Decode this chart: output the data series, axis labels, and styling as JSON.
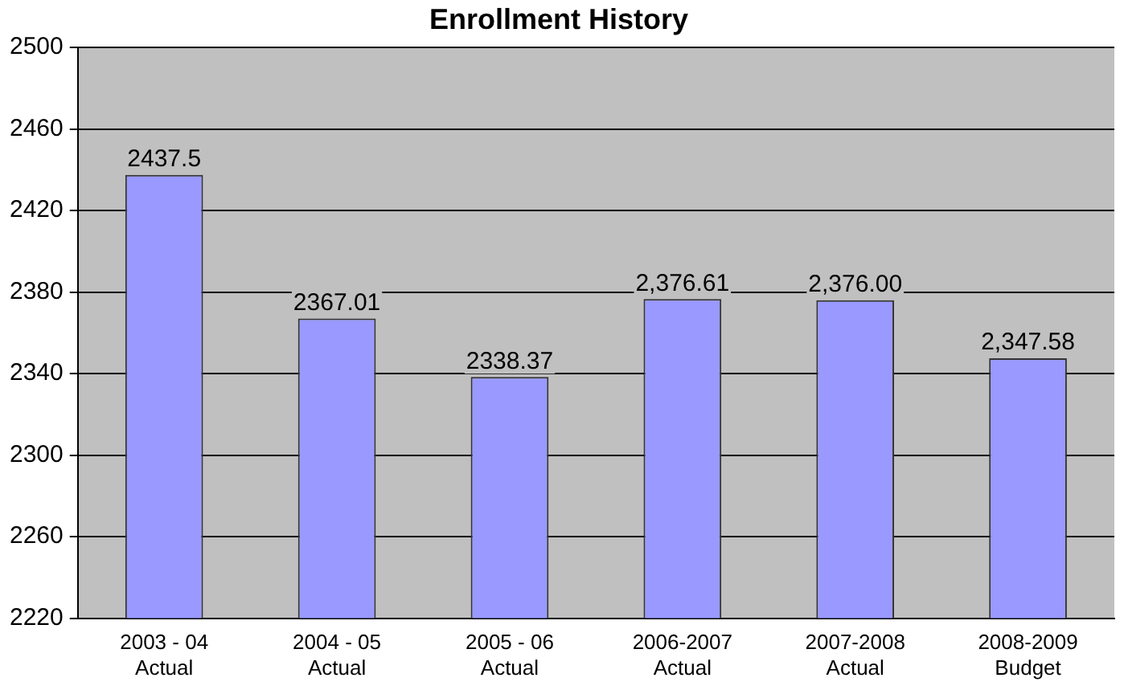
{
  "chart_data": {
    "type": "bar",
    "title": "Enrollment History",
    "categories": [
      "2003 - 04\nActual",
      "2004 - 05\nActual",
      "2005 - 06\nActual",
      "2006-2007\nActual",
      "2007-2008\nActual",
      "2008-2009\nBudget"
    ],
    "values": [
      2437.5,
      2367.01,
      2338.37,
      2376.61,
      2376,
      2347.58
    ],
    "value_labels": [
      "2437.5",
      "2367.01",
      "2338.37",
      "2,376.61",
      "2,376.00",
      "2,347.58"
    ],
    "color": "#9999ff",
    "ylim": [
      2220,
      2500
    ],
    "yticks": [
      2220,
      2260,
      2300,
      2340,
      2380,
      2420,
      2460,
      2500
    ],
    "grid": "y",
    "legend": false
  }
}
